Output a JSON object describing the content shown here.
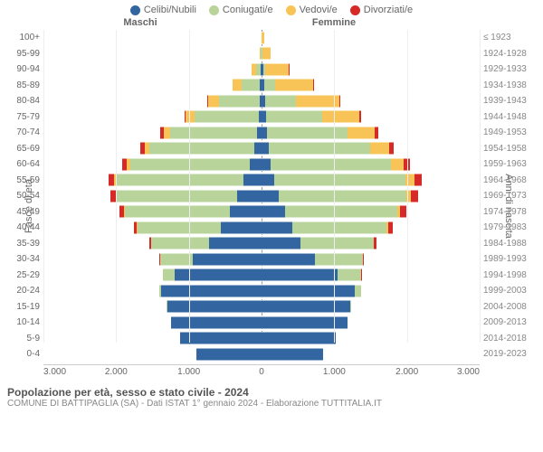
{
  "legend": [
    {
      "label": "Celibi/Nubili",
      "color": "#3366a0"
    },
    {
      "label": "Coniugati/e",
      "color": "#b8d49a"
    },
    {
      "label": "Vedovi/e",
      "color": "#f8c457"
    },
    {
      "label": "Divorziati/e",
      "color": "#d62a28"
    }
  ],
  "headers": {
    "left": "Maschi",
    "right": "Femmine"
  },
  "axis_labels": {
    "left": "Fasce di età",
    "right": "Anni di nascita"
  },
  "xaxis": {
    "max": 3000,
    "ticks": [
      3000,
      2000,
      1000,
      0,
      1000,
      2000,
      3000
    ]
  },
  "footer": {
    "title": "Popolazione per età, sesso e stato civile - 2024",
    "subtitle": "COMUNE DI BATTIPAGLIA (SA) - Dati ISTAT 1° gennaio 2024 - Elaborazione TUTTITALIA.IT"
  },
  "rows": [
    {
      "age": "100+",
      "birth": "≤ 1923",
      "m": {
        "c": 2,
        "co": 0,
        "v": 2,
        "d": 0
      },
      "f": {
        "c": 3,
        "co": 0,
        "v": 30,
        "d": 0
      }
    },
    {
      "age": "95-99",
      "birth": "1924-1928",
      "m": {
        "c": 4,
        "co": 6,
        "v": 20,
        "d": 0
      },
      "f": {
        "c": 6,
        "co": 4,
        "v": 120,
        "d": 0
      }
    },
    {
      "age": "90-94",
      "birth": "1929-1933",
      "m": {
        "c": 10,
        "co": 60,
        "v": 70,
        "d": 2
      },
      "f": {
        "c": 20,
        "co": 30,
        "v": 320,
        "d": 4
      }
    },
    {
      "age": "85-89",
      "birth": "1934-1938",
      "m": {
        "c": 20,
        "co": 260,
        "v": 120,
        "d": 4
      },
      "f": {
        "c": 40,
        "co": 150,
        "v": 520,
        "d": 8
      }
    },
    {
      "age": "80-84",
      "birth": "1939-1943",
      "m": {
        "c": 30,
        "co": 560,
        "v": 150,
        "d": 10
      },
      "f": {
        "c": 50,
        "co": 420,
        "v": 600,
        "d": 15
      }
    },
    {
      "age": "75-79",
      "birth": "1944-1948",
      "m": {
        "c": 40,
        "co": 880,
        "v": 120,
        "d": 20
      },
      "f": {
        "c": 60,
        "co": 780,
        "v": 500,
        "d": 25
      }
    },
    {
      "age": "70-74",
      "birth": "1949-1953",
      "m": {
        "c": 60,
        "co": 1200,
        "v": 90,
        "d": 40
      },
      "f": {
        "c": 80,
        "co": 1100,
        "v": 380,
        "d": 40
      }
    },
    {
      "age": "65-69",
      "birth": "1954-1958",
      "m": {
        "c": 100,
        "co": 1450,
        "v": 60,
        "d": 55
      },
      "f": {
        "c": 100,
        "co": 1400,
        "v": 260,
        "d": 60
      }
    },
    {
      "age": "60-64",
      "birth": "1959-1963",
      "m": {
        "c": 160,
        "co": 1650,
        "v": 40,
        "d": 70
      },
      "f": {
        "c": 130,
        "co": 1650,
        "v": 180,
        "d": 80
      }
    },
    {
      "age": "55-59",
      "birth": "1964-1968",
      "m": {
        "c": 250,
        "co": 1750,
        "v": 25,
        "d": 80
      },
      "f": {
        "c": 180,
        "co": 1800,
        "v": 120,
        "d": 100
      }
    },
    {
      "age": "50-54",
      "birth": "1969-1973",
      "m": {
        "c": 340,
        "co": 1650,
        "v": 15,
        "d": 75
      },
      "f": {
        "c": 240,
        "co": 1750,
        "v": 70,
        "d": 90
      }
    },
    {
      "age": "45-49",
      "birth": "1974-1978",
      "m": {
        "c": 430,
        "co": 1450,
        "v": 10,
        "d": 60
      },
      "f": {
        "c": 320,
        "co": 1550,
        "v": 40,
        "d": 80
      }
    },
    {
      "age": "40-44",
      "birth": "1979-1983",
      "m": {
        "c": 560,
        "co": 1150,
        "v": 5,
        "d": 45
      },
      "f": {
        "c": 420,
        "co": 1300,
        "v": 20,
        "d": 60
      }
    },
    {
      "age": "35-39",
      "birth": "1984-1988",
      "m": {
        "c": 720,
        "co": 800,
        "v": 2,
        "d": 25
      },
      "f": {
        "c": 540,
        "co": 1000,
        "v": 8,
        "d": 35
      }
    },
    {
      "age": "30-34",
      "birth": "1989-1993",
      "m": {
        "c": 950,
        "co": 450,
        "v": 0,
        "d": 10
      },
      "f": {
        "c": 740,
        "co": 650,
        "v": 3,
        "d": 15
      }
    },
    {
      "age": "25-29",
      "birth": "1994-1998",
      "m": {
        "c": 1200,
        "co": 160,
        "v": 0,
        "d": 3
      },
      "f": {
        "c": 1050,
        "co": 320,
        "v": 0,
        "d": 5
      }
    },
    {
      "age": "20-24",
      "birth": "1999-2003",
      "m": {
        "c": 1380,
        "co": 30,
        "v": 0,
        "d": 0
      },
      "f": {
        "c": 1280,
        "co": 90,
        "v": 0,
        "d": 0
      }
    },
    {
      "age": "15-19",
      "birth": "2004-2008",
      "m": {
        "c": 1300,
        "co": 2,
        "v": 0,
        "d": 0
      },
      "f": {
        "c": 1220,
        "co": 8,
        "v": 0,
        "d": 0
      }
    },
    {
      "age": "10-14",
      "birth": "2009-2013",
      "m": {
        "c": 1250,
        "co": 0,
        "v": 0,
        "d": 0
      },
      "f": {
        "c": 1180,
        "co": 0,
        "v": 0,
        "d": 0
      }
    },
    {
      "age": "5-9",
      "birth": "2014-2018",
      "m": {
        "c": 1120,
        "co": 0,
        "v": 0,
        "d": 0
      },
      "f": {
        "c": 1020,
        "co": 0,
        "v": 0,
        "d": 0
      }
    },
    {
      "age": "0-4",
      "birth": "2019-2023",
      "m": {
        "c": 900,
        "co": 0,
        "v": 0,
        "d": 0
      },
      "f": {
        "c": 850,
        "co": 0,
        "v": 0,
        "d": 0
      }
    }
  ],
  "colors": {
    "c": "#3366a0",
    "co": "#b8d49a",
    "v": "#f8c457",
    "d": "#d62a28"
  }
}
